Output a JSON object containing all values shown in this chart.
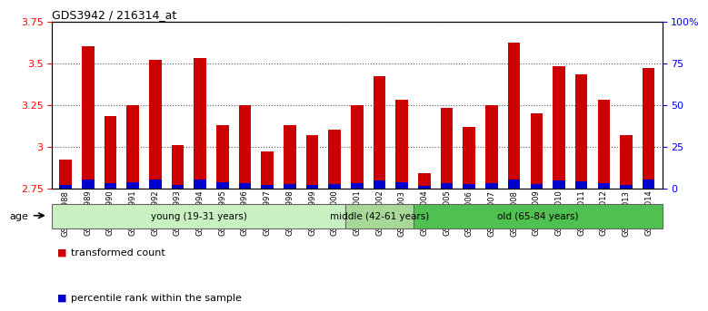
{
  "title": "GDS3942 / 216314_at",
  "samples": [
    "GSM812988",
    "GSM812989",
    "GSM812990",
    "GSM812991",
    "GSM812992",
    "GSM812993",
    "GSM812994",
    "GSM812995",
    "GSM812996",
    "GSM812997",
    "GSM812998",
    "GSM812999",
    "GSM813000",
    "GSM813001",
    "GSM813002",
    "GSM813003",
    "GSM813004",
    "GSM813005",
    "GSM813006",
    "GSM813007",
    "GSM813008",
    "GSM813009",
    "GSM813010",
    "GSM813011",
    "GSM813012",
    "GSM813013",
    "GSM813014"
  ],
  "red_values": [
    2.92,
    3.6,
    3.18,
    3.25,
    3.52,
    3.01,
    3.53,
    3.13,
    3.25,
    2.97,
    3.13,
    3.07,
    3.1,
    3.25,
    3.42,
    3.28,
    2.84,
    3.23,
    3.12,
    3.25,
    3.62,
    3.2,
    3.48,
    3.43,
    3.28,
    3.07,
    3.47
  ],
  "blue_heights": [
    0.022,
    0.055,
    0.03,
    0.038,
    0.05,
    0.018,
    0.052,
    0.038,
    0.033,
    0.018,
    0.025,
    0.022,
    0.025,
    0.033,
    0.045,
    0.038,
    0.012,
    0.033,
    0.025,
    0.033,
    0.052,
    0.025,
    0.048,
    0.043,
    0.033,
    0.02,
    0.05
  ],
  "base": 2.75,
  "ylim_left": [
    2.75,
    3.75
  ],
  "ylim_right": [
    0,
    100
  ],
  "yticks_left": [
    2.75,
    3.0,
    3.25,
    3.5,
    3.75
  ],
  "ytick_labels_left": [
    "2.75",
    "3",
    "3.25",
    "3.5",
    "3.75"
  ],
  "yticks_right": [
    0,
    25,
    50,
    75,
    100
  ],
  "ytick_labels_right": [
    "0",
    "25",
    "50",
    "75",
    "100%"
  ],
  "groups": [
    {
      "label": "young (19-31 years)",
      "start": 0,
      "end": 13,
      "color": "#c8f0c0"
    },
    {
      "label": "middle (42-61 years)",
      "start": 13,
      "end": 16,
      "color": "#a8d898"
    },
    {
      "label": "old (65-84 years)",
      "start": 16,
      "end": 27,
      "color": "#50c050"
    }
  ],
  "bar_color_red": "#cc0000",
  "bar_color_blue": "#0000cc",
  "bar_width": 0.55,
  "grid_color": "#555555",
  "bg_color": "#ffffff",
  "plot_bg": "#ffffff",
  "age_label": "age",
  "legend_red": "transformed count",
  "legend_blue": "percentile rank within the sample"
}
